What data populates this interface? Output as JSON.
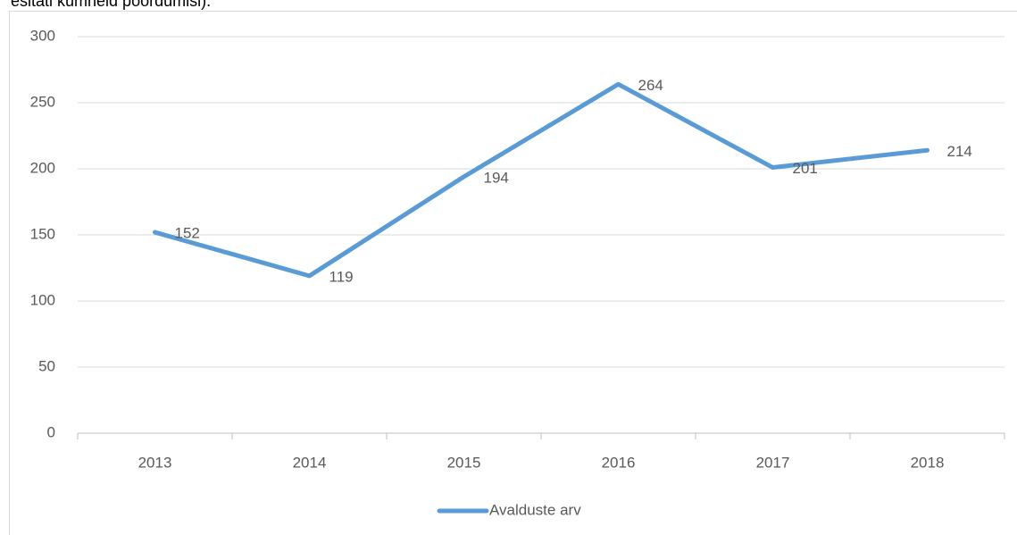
{
  "preceding_text": "esitati kümneid pöördumisi).",
  "chart_data": {
    "type": "line",
    "categories": [
      "2013",
      "2014",
      "2015",
      "2016",
      "2017",
      "2018"
    ],
    "series": [
      {
        "name": "Avalduste arv",
        "color": "#5b9bd5",
        "values": [
          152,
          119,
          194,
          264,
          201,
          214
        ]
      }
    ],
    "ylim": [
      0,
      300
    ],
    "yticks": [
      0,
      50,
      100,
      150,
      200,
      250,
      300
    ],
    "grid": true,
    "legend": "bottom"
  }
}
